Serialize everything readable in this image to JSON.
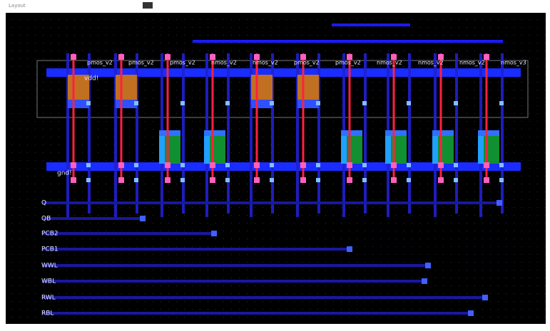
{
  "toolbar": {
    "title": "Layout"
  },
  "rails": {
    "top": "vdd!",
    "bottom": "gnd!"
  },
  "devices": [
    "pmos_v2",
    "pmos_v2",
    "pmos_v2",
    "nmos_v2",
    "nmos_v2",
    "pmos_v2",
    "pmos_v2",
    "nmos_v2",
    "nmos_v2",
    "nmos_v2",
    "nmos_v3"
  ],
  "signals": [
    "Q",
    "QB",
    "PCB2",
    "PCB1",
    "WWL",
    "WBL",
    "RWL",
    "RBL"
  ]
}
